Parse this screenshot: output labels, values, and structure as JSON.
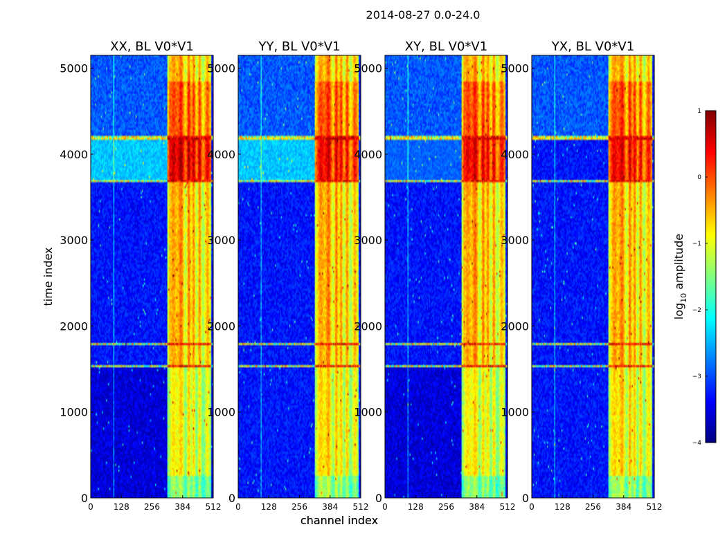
{
  "figure": {
    "suptitle": "2014-08-27 0.0-24.0"
  },
  "colors": {
    "jet": [
      "#00007f",
      "#0000ff",
      "#007fff",
      "#00ffff",
      "#7fff7f",
      "#ffff00",
      "#ff7f00",
      "#ff0000",
      "#7f0000"
    ],
    "frame": "#000000",
    "background": "#ffffff"
  },
  "chart_data": [
    {
      "type": "heatmap",
      "title": "XX, BL V0*V1",
      "xlabel": "channel index",
      "ylabel": "time index",
      "xlim": [
        0,
        512
      ],
      "ylim": [
        0,
        5150
      ],
      "xticks": [
        0,
        128,
        256,
        384,
        512
      ],
      "yticks": [
        0,
        1000,
        2000,
        3000,
        4000,
        5000
      ],
      "value_units": "log10 amplitude",
      "features": {
        "band_channels": [
          [
            325,
            365
          ],
          [
            365,
            395
          ],
          [
            400,
            420
          ],
          [
            420,
            440
          ],
          [
            445,
            462
          ],
          [
            472,
            500
          ]
        ],
        "bright_block_rows": [
          3690,
          4170
        ],
        "lower_low_rows": [
          0,
          1540
        ],
        "rfi_rows": [
          1540,
          1780,
          3680,
          4170,
          4190
        ]
      }
    },
    {
      "type": "heatmap",
      "title": "YY, BL V0*V1",
      "xlabel": "channel index",
      "ylabel": "",
      "xlim": [
        0,
        512
      ],
      "ylim": [
        0,
        5150
      ],
      "xticks": [
        0,
        128,
        256,
        384,
        512
      ],
      "yticks": [
        0,
        1000,
        2000,
        3000,
        4000,
        5000
      ],
      "value_units": "log10 amplitude"
    },
    {
      "type": "heatmap",
      "title": "XY, BL V0*V1",
      "xlabel": "",
      "ylabel": "",
      "xlim": [
        0,
        512
      ],
      "ylim": [
        0,
        5150
      ],
      "xticks": [
        0,
        128,
        256,
        384,
        512
      ],
      "yticks": [
        0,
        1000,
        2000,
        3000,
        4000,
        5000
      ],
      "value_units": "log10 amplitude"
    },
    {
      "type": "heatmap",
      "title": "YX, BL V0*V1",
      "xlabel": "",
      "ylabel": "",
      "xlim": [
        0,
        512
      ],
      "ylim": [
        0,
        5150
      ],
      "xticks": [
        0,
        128,
        256,
        384,
        512
      ],
      "yticks": [
        0,
        1000,
        2000,
        3000,
        4000,
        5000
      ],
      "value_units": "log10 amplitude"
    }
  ],
  "colorbar": {
    "label_prefix": "log",
    "label_sub": "10",
    "label_suffix": " amplitude",
    "range": [
      -4,
      1
    ],
    "ticks": [
      1,
      0,
      -1,
      -2,
      -3,
      -4
    ],
    "tick_labels": [
      "1",
      "0",
      "−1",
      "−2",
      "−3",
      "−4"
    ]
  }
}
